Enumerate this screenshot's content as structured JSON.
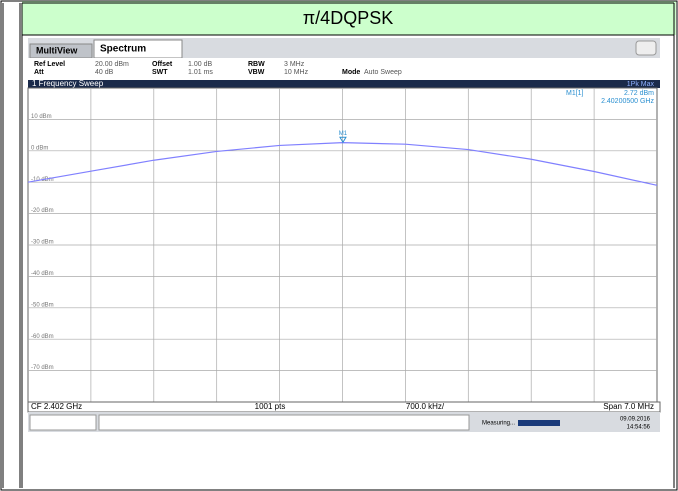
{
  "header": {
    "title": "π/4DQPSK"
  },
  "tabs": [
    "MultiView",
    "Spectrum"
  ],
  "settings": [
    [
      "Ref Level",
      "20.00 dBm",
      "Offset",
      "1.00 dB",
      "RBW",
      "3 MHz"
    ],
    [
      "Att",
      "40 dB",
      "SWT",
      "1.01 ms",
      "VBW",
      "10 MHz",
      "Mode",
      "Auto Sweep"
    ]
  ],
  "window_title": "1 Frequency Sweep",
  "trace_label": "1Pk Max",
  "footer": [
    "CF 2.402 GHz",
    "1001 pts",
    "700.0 kHz/",
    "Span 7.0 MHz"
  ],
  "status": {
    "text": "Measuring...",
    "date": "09.09.2016",
    "time": "14:54:56"
  },
  "chart_data": {
    "type": "line",
    "x": [
      2.3985,
      2.3992,
      2.3999,
      2.4006,
      2.4013,
      2.402,
      2.4027,
      2.4034,
      2.4041,
      2.4048,
      2.4055
    ],
    "series": [
      {
        "name": "1Pk Max",
        "color": "#8080ff",
        "values": [
          -10,
          -6.5,
          -3,
          -0.2,
          1.7,
          2.6,
          2.1,
          0.4,
          -2.7,
          -6.6,
          -11
        ]
      }
    ],
    "xlim": [
      2.3985,
      2.4055
    ],
    "ylim": [
      -80,
      20
    ],
    "yticks": [
      {
        "value": 10,
        "label": "10 dBm"
      },
      {
        "value": 0,
        "label": "0 dBm"
      },
      {
        "value": -10,
        "label": "-10 dBm"
      },
      {
        "value": -20,
        "label": "-20 dBm"
      },
      {
        "value": -30,
        "label": "-30 dBm"
      },
      {
        "value": -40,
        "label": "-40 dBm"
      },
      {
        "value": -50,
        "label": "-50 dBm"
      },
      {
        "value": -60,
        "label": "-60 dBm"
      },
      {
        "value": -70,
        "label": "-70 dBm"
      }
    ],
    "grid": true,
    "marker": {
      "label": "M1",
      "name": "M1[1]",
      "x": 2.402005,
      "value": 2.72,
      "value_label": "2.72 dBm",
      "x_label": "2.40200500 GHz"
    }
  }
}
